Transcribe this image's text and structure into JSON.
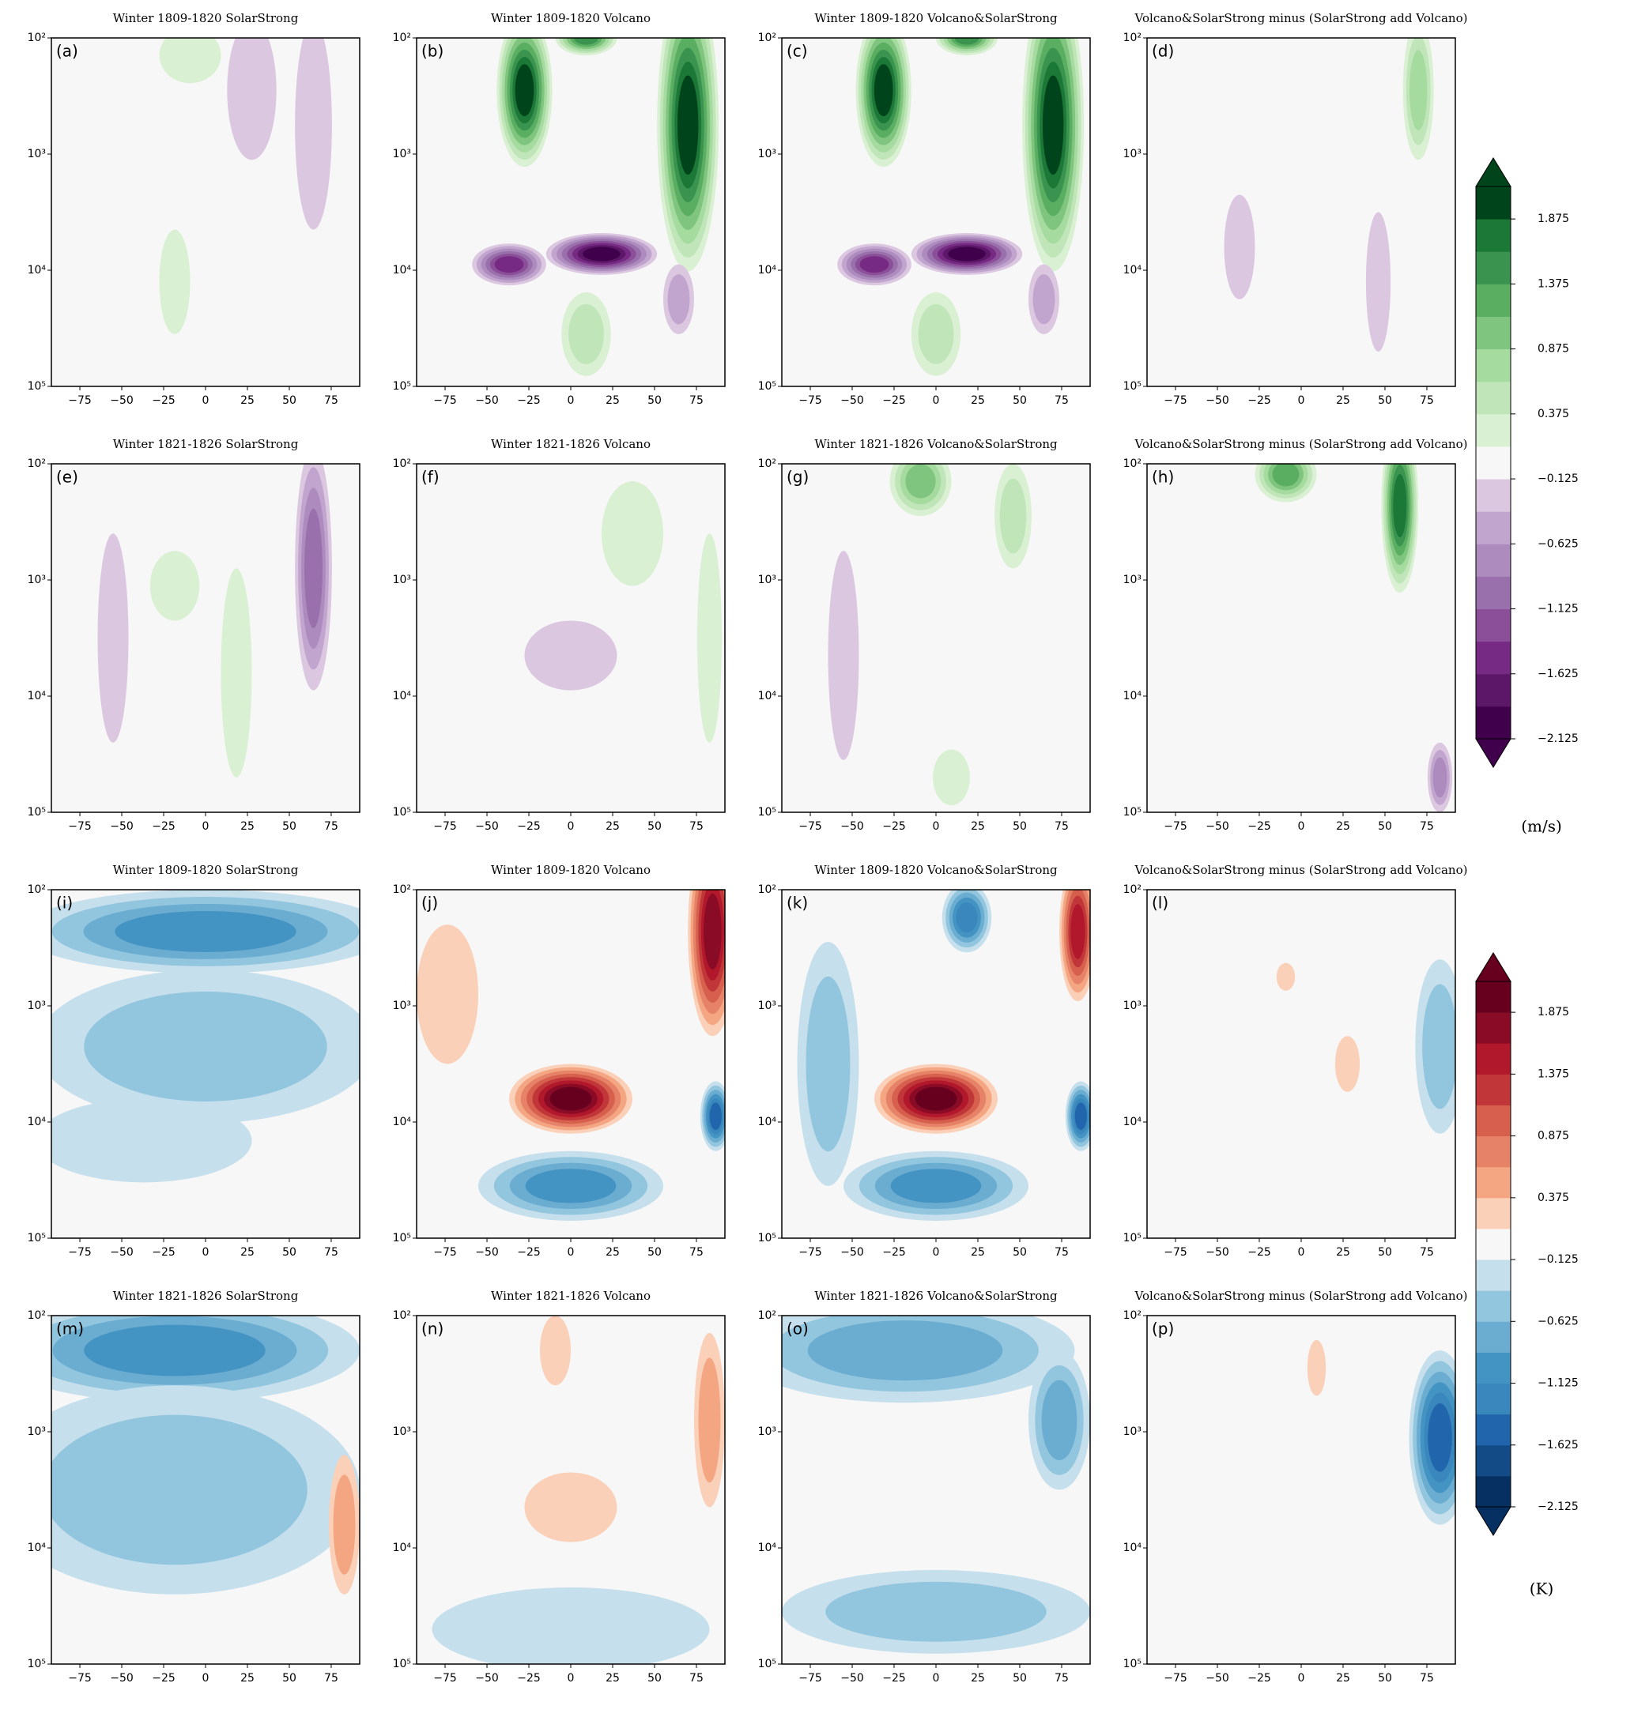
{
  "chart_data": [
    {
      "type": "contour",
      "title": "Winter 1809-1820 SolarStrong",
      "label": "(a)",
      "xlim": [
        -92,
        92
      ],
      "xticks": [
        {
          "value": -75,
          "label": "−75"
        },
        {
          "value": -50,
          "label": "−50"
        },
        {
          "value": -25,
          "label": "−25"
        },
        0,
        25,
        50,
        75
      ],
      "ylim": [
        100000,
        100
      ],
      "yscale": "log",
      "yticks": [
        {
          "value": 100,
          "label": "10²"
        },
        {
          "value": 1000,
          "label": "10³"
        },
        {
          "value": 10000,
          "label": "10⁴"
        },
        {
          "value": 100000,
          "label": "10⁵"
        }
      ]
    },
    {
      "type": "contour",
      "title": "Winter 1809-1820 Volcano",
      "label": "(b)",
      "xlim": [
        -92,
        92
      ],
      "xticks": [
        {
          "value": -75,
          "label": "−75"
        },
        {
          "value": -50,
          "label": "−50"
        },
        {
          "value": -25,
          "label": "−25"
        },
        0,
        25,
        50,
        75
      ],
      "ylim": [
        100000,
        100
      ],
      "yscale": "log",
      "yticks": [
        {
          "value": 100,
          "label": "10²"
        },
        {
          "value": 1000,
          "label": "10³"
        },
        {
          "value": 10000,
          "label": "10⁴"
        },
        {
          "value": 100000,
          "label": "10⁵"
        }
      ]
    },
    {
      "type": "contour",
      "title": "Winter 1809-1820 Volcano&SolarStrong",
      "label": "(c)",
      "xlim": [
        -92,
        92
      ],
      "xticks": [
        {
          "value": -75,
          "label": "−75"
        },
        {
          "value": -50,
          "label": "−50"
        },
        {
          "value": -25,
          "label": "−25"
        },
        0,
        25,
        50,
        75
      ],
      "ylim": [
        100000,
        100
      ],
      "yscale": "log",
      "yticks": [
        {
          "value": 100,
          "label": "10²"
        },
        {
          "value": 1000,
          "label": "10³"
        },
        {
          "value": 10000,
          "label": "10⁴"
        },
        {
          "value": 100000,
          "label": "10⁵"
        }
      ]
    },
    {
      "type": "contour",
      "title": "Volcano&SolarStrong minus (SolarStrong add Volcano)",
      "label": "(d)",
      "xlim": [
        -92,
        92
      ],
      "xticks": [
        {
          "value": -75,
          "label": "−75"
        },
        {
          "value": -50,
          "label": "−50"
        },
        {
          "value": -25,
          "label": "−25"
        },
        0,
        25,
        50,
        75
      ],
      "ylim": [
        100000,
        100
      ],
      "yscale": "log",
      "yticks": [
        {
          "value": 100,
          "label": "10²"
        },
        {
          "value": 1000,
          "label": "10³"
        },
        {
          "value": 10000,
          "label": "10⁴"
        },
        {
          "value": 100000,
          "label": "10⁵"
        }
      ]
    },
    {
      "type": "contour",
      "title": "Winter 1821-1826 SolarStrong",
      "label": "(e)",
      "xlim": [
        -92,
        92
      ],
      "xticks": [
        {
          "value": -75,
          "label": "−75"
        },
        {
          "value": -50,
          "label": "−50"
        },
        {
          "value": -25,
          "label": "−25"
        },
        0,
        25,
        50,
        75
      ],
      "ylim": [
        100000,
        100
      ],
      "yscale": "log",
      "yticks": [
        {
          "value": 100,
          "label": "10²"
        },
        {
          "value": 1000,
          "label": "10³"
        },
        {
          "value": 10000,
          "label": "10⁴"
        },
        {
          "value": 100000,
          "label": "10⁵"
        }
      ]
    },
    {
      "type": "contour",
      "title": "Winter 1821-1826 Volcano",
      "label": "(f)",
      "xlim": [
        -92,
        92
      ],
      "xticks": [
        {
          "value": -75,
          "label": "−75"
        },
        {
          "value": -50,
          "label": "−50"
        },
        {
          "value": -25,
          "label": "−25"
        },
        0,
        25,
        50,
        75
      ],
      "ylim": [
        100000,
        100
      ],
      "yscale": "log",
      "yticks": [
        {
          "value": 100,
          "label": "10²"
        },
        {
          "value": 1000,
          "label": "10³"
        },
        {
          "value": 10000,
          "label": "10⁴"
        },
        {
          "value": 100000,
          "label": "10⁵"
        }
      ]
    },
    {
      "type": "contour",
      "title": "Winter 1821-1826 Volcano&SolarStrong",
      "label": "(g)",
      "xlim": [
        -92,
        92
      ],
      "xticks": [
        {
          "value": -75,
          "label": "−75"
        },
        {
          "value": -50,
          "label": "−50"
        },
        {
          "value": -25,
          "label": "−25"
        },
        0,
        25,
        50,
        75
      ],
      "ylim": [
        100000,
        100
      ],
      "yscale": "log",
      "yticks": [
        {
          "value": 100,
          "label": "10²"
        },
        {
          "value": 1000,
          "label": "10³"
        },
        {
          "value": 10000,
          "label": "10⁴"
        },
        {
          "value": 100000,
          "label": "10⁵"
        }
      ]
    },
    {
      "type": "contour",
      "title": "Volcano&SolarStrong minus (SolarStrong add Volcano)",
      "label": "(h)",
      "xlim": [
        -92,
        92
      ],
      "xticks": [
        {
          "value": -75,
          "label": "−75"
        },
        {
          "value": -50,
          "label": "−50"
        },
        {
          "value": -25,
          "label": "−25"
        },
        0,
        25,
        50,
        75
      ],
      "ylim": [
        100000,
        100
      ],
      "yscale": "log",
      "yticks": [
        {
          "value": 100,
          "label": "10²"
        },
        {
          "value": 1000,
          "label": "10³"
        },
        {
          "value": 10000,
          "label": "10⁴"
        },
        {
          "value": 100000,
          "label": "10⁵"
        }
      ]
    },
    {
      "type": "contour",
      "title": "Winter 1809-1820 SolarStrong",
      "label": "(i)",
      "xlim": [
        -92,
        92
      ],
      "xticks": [
        {
          "value": -75,
          "label": "−75"
        },
        {
          "value": -50,
          "label": "−50"
        },
        {
          "value": -25,
          "label": "−25"
        },
        0,
        25,
        50,
        75
      ],
      "ylim": [
        100000,
        100
      ],
      "yscale": "log",
      "yticks": [
        {
          "value": 100,
          "label": "10²"
        },
        {
          "value": 1000,
          "label": "10³"
        },
        {
          "value": 10000,
          "label": "10⁴"
        },
        {
          "value": 100000,
          "label": "10⁵"
        }
      ]
    },
    {
      "type": "contour",
      "title": "Winter 1809-1820 Volcano",
      "label": "(j)",
      "xlim": [
        -92,
        92
      ],
      "xticks": [
        {
          "value": -75,
          "label": "−75"
        },
        {
          "value": -50,
          "label": "−50"
        },
        {
          "value": -25,
          "label": "−25"
        },
        0,
        25,
        50,
        75
      ],
      "ylim": [
        100000,
        100
      ],
      "yscale": "log",
      "yticks": [
        {
          "value": 100,
          "label": "10²"
        },
        {
          "value": 1000,
          "label": "10³"
        },
        {
          "value": 10000,
          "label": "10⁴"
        },
        {
          "value": 100000,
          "label": "10⁵"
        }
      ]
    },
    {
      "type": "contour",
      "title": "Winter 1809-1820 Volcano&SolarStrong",
      "label": "(k)",
      "xlim": [
        -92,
        92
      ],
      "xticks": [
        {
          "value": -75,
          "label": "−75"
        },
        {
          "value": -50,
          "label": "−50"
        },
        {
          "value": -25,
          "label": "−25"
        },
        0,
        25,
        50,
        75
      ],
      "ylim": [
        100000,
        100
      ],
      "yscale": "log",
      "yticks": [
        {
          "value": 100,
          "label": "10²"
        },
        {
          "value": 1000,
          "label": "10³"
        },
        {
          "value": 10000,
          "label": "10⁴"
        },
        {
          "value": 100000,
          "label": "10⁵"
        }
      ]
    },
    {
      "type": "contour",
      "title": "Volcano&SolarStrong minus (SolarStrong add Volcano)",
      "label": "(l)",
      "xlim": [
        -92,
        92
      ],
      "xticks": [
        {
          "value": -75,
          "label": "−75"
        },
        {
          "value": -50,
          "label": "−50"
        },
        {
          "value": -25,
          "label": "−25"
        },
        0,
        25,
        50,
        75
      ],
      "ylim": [
        100000,
        100
      ],
      "yscale": "log",
      "yticks": [
        {
          "value": 100,
          "label": "10²"
        },
        {
          "value": 1000,
          "label": "10³"
        },
        {
          "value": 10000,
          "label": "10⁴"
        },
        {
          "value": 100000,
          "label": "10⁵"
        }
      ]
    },
    {
      "type": "contour",
      "title": "Winter 1821-1826 SolarStrong",
      "label": "(m)",
      "xlim": [
        -92,
        92
      ],
      "xticks": [
        {
          "value": -75,
          "label": "−75"
        },
        {
          "value": -50,
          "label": "−50"
        },
        {
          "value": -25,
          "label": "−25"
        },
        0,
        25,
        50,
        75
      ],
      "ylim": [
        100000,
        100
      ],
      "yscale": "log",
      "yticks": [
        {
          "value": 100,
          "label": "10²"
        },
        {
          "value": 1000,
          "label": "10³"
        },
        {
          "value": 10000,
          "label": "10⁴"
        },
        {
          "value": 100000,
          "label": "10⁵"
        }
      ]
    },
    {
      "type": "contour",
      "title": "Winter 1821-1826 Volcano",
      "label": "(n)",
      "xlim": [
        -92,
        92
      ],
      "xticks": [
        {
          "value": -75,
          "label": "−75"
        },
        {
          "value": -50,
          "label": "−50"
        },
        {
          "value": -25,
          "label": "−25"
        },
        0,
        25,
        50,
        75
      ],
      "ylim": [
        100000,
        100
      ],
      "yscale": "log",
      "yticks": [
        {
          "value": 100,
          "label": "10²"
        },
        {
          "value": 1000,
          "label": "10³"
        },
        {
          "value": 10000,
          "label": "10⁴"
        },
        {
          "value": 100000,
          "label": "10⁵"
        }
      ]
    },
    {
      "type": "contour",
      "title": "Winter 1821-1826 Volcano&SolarStrong",
      "label": "(o)",
      "xlim": [
        -92,
        92
      ],
      "xticks": [
        {
          "value": -75,
          "label": "−75"
        },
        {
          "value": -50,
          "label": "−50"
        },
        {
          "value": -25,
          "label": "−25"
        },
        0,
        25,
        50,
        75
      ],
      "ylim": [
        100000,
        100
      ],
      "yscale": "log",
      "yticks": [
        {
          "value": 100,
          "label": "10²"
        },
        {
          "value": 1000,
          "label": "10³"
        },
        {
          "value": 10000,
          "label": "10⁴"
        },
        {
          "value": 100000,
          "label": "10⁵"
        }
      ]
    },
    {
      "type": "contour",
      "title": "Volcano&SolarStrong minus (SolarStrong add Volcano)",
      "label": "(p)",
      "xlim": [
        -92,
        92
      ],
      "xticks": [
        {
          "value": -75,
          "label": "−75"
        },
        {
          "value": -50,
          "label": "−50"
        },
        {
          "value": -25,
          "label": "−25"
        },
        0,
        25,
        50,
        75
      ],
      "ylim": [
        100000,
        100
      ],
      "yscale": "log",
      "yticks": [
        {
          "value": 100,
          "label": "10²"
        },
        {
          "value": 1000,
          "label": "10³"
        },
        {
          "value": 10000,
          "label": "10⁴"
        },
        {
          "value": 100000,
          "label": "10⁵"
        }
      ]
    }
  ],
  "colorbars": [
    {
      "label": "(m/s)",
      "lim": [
        -2.125,
        2.125
      ],
      "extend": "both",
      "ticks": [
        1.875,
        1.375,
        0.875,
        0.375,
        {
          "value": -0.125,
          "label": "−0.125"
        },
        {
          "value": -0.625,
          "label": "−0.625"
        },
        {
          "value": -1.125,
          "label": "−1.125"
        },
        {
          "value": -1.625,
          "label": "−1.625"
        },
        {
          "value": -2.125,
          "label": "−2.125"
        }
      ],
      "colors": [
        "#40004b",
        "#5c1768",
        "#762a83",
        "#8a4f98",
        "#9970ab",
        "#ad8bbe",
        "#c2a5cf",
        "#dcc7e1",
        "#f7f7f7",
        "#d9f0d3",
        "#bfe5b8",
        "#a6dba0",
        "#7fc47f",
        "#5aae61",
        "#3a9450",
        "#1b7837",
        "#00441b"
      ]
    },
    {
      "label": "(K)",
      "lim": [
        -2.125,
        2.125
      ],
      "extend": "both",
      "ticks": [
        1.875,
        1.375,
        0.875,
        0.375,
        {
          "value": -0.125,
          "label": "−0.125"
        },
        {
          "value": -0.625,
          "label": "−0.625"
        },
        {
          "value": -1.125,
          "label": "−1.125"
        },
        {
          "value": -1.625,
          "label": "−1.625"
        },
        {
          "value": -2.125,
          "label": "−2.125"
        }
      ],
      "colors": [
        "#053061",
        "#134b87",
        "#2166ac",
        "#3a87bd",
        "#4393c3",
        "#6bacd1",
        "#92c5de",
        "#c5dfec",
        "#f7f7f7",
        "#fbd0b9",
        "#f4a582",
        "#e58267",
        "#d6604d",
        "#c13639",
        "#b2182b",
        "#8a0b25",
        "#67001f"
      ]
    }
  ]
}
